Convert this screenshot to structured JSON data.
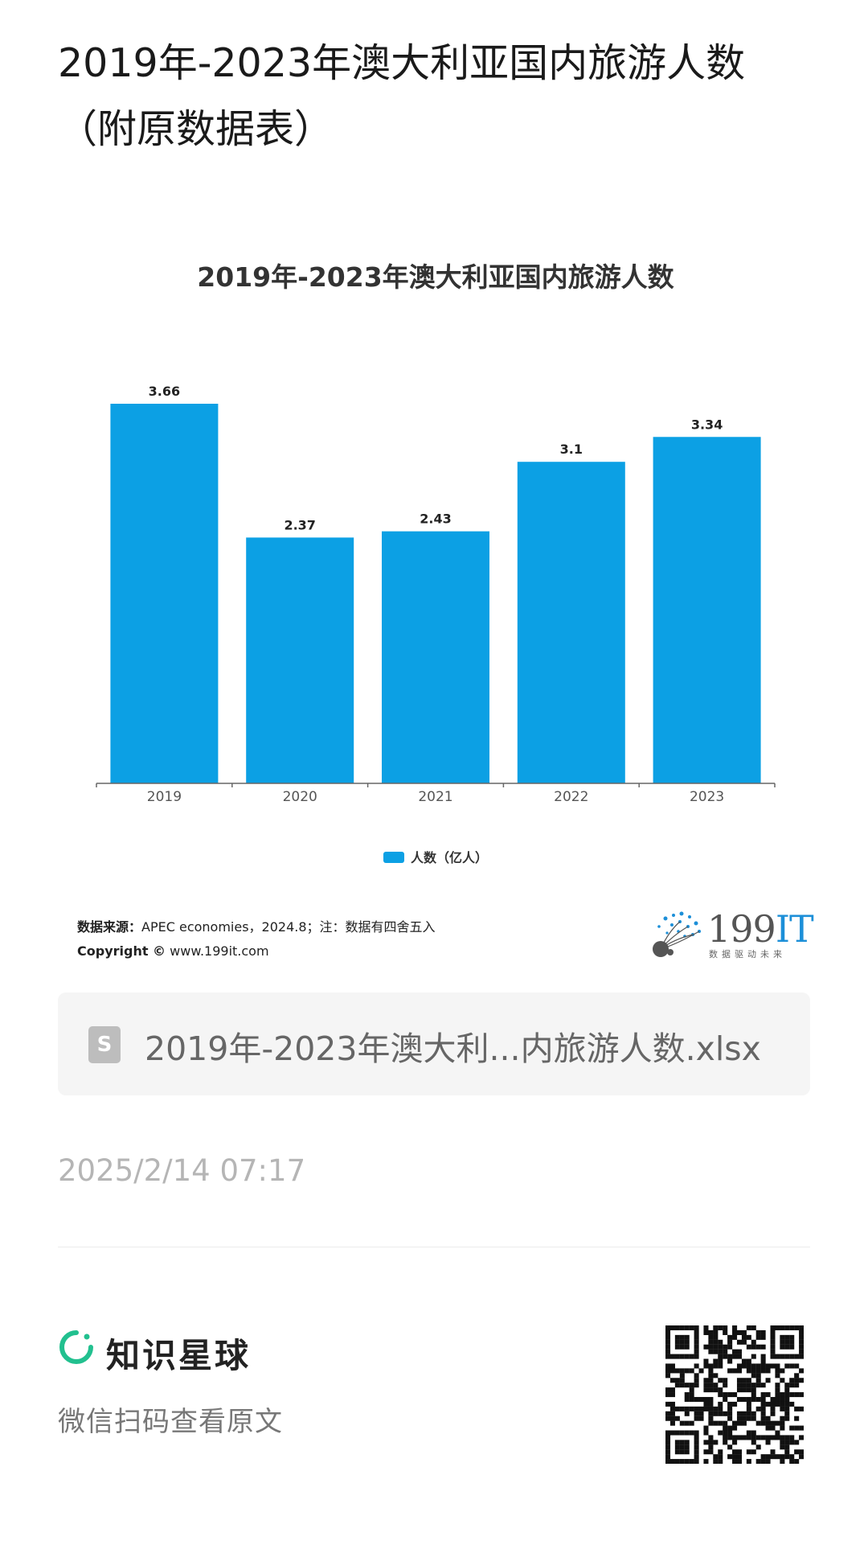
{
  "page": {
    "title": "2019年-2023年澳大利亚国内旅游人数（附原数据表）"
  },
  "chart_data": {
    "type": "bar",
    "title": "2019年-2023年澳大利亚国内旅游人数",
    "categories": [
      "2019",
      "2020",
      "2021",
      "2022",
      "2023"
    ],
    "series": [
      {
        "name": "人数（亿人）",
        "values": [
          3.66,
          2.37,
          2.43,
          3.1,
          3.34
        ]
      }
    ],
    "value_labels": [
      "3.66",
      "2.37",
      "2.43",
      "3.1",
      "3.34"
    ],
    "ylim": [
      0,
      3.66
    ],
    "grid": false,
    "legend_position": "bottom",
    "colors": {
      "bar": "#0ca0e4",
      "axis": "#666666"
    }
  },
  "source": {
    "label": "数据来源：",
    "text": "APEC economies，2024.8；注：数据有四舍五入",
    "copyright_label": "Copyright ©",
    "copyright_text": " www.199it.com"
  },
  "logo": {
    "text_main": "199",
    "text_accent": "IT",
    "tagline": "数据驱动未来"
  },
  "file": {
    "icon": "S",
    "name": "2019年-2023年澳大利...内旅游人数.xlsx"
  },
  "timestamp": "2025/2/14 07:17",
  "footer": {
    "brand_name": "知识星球",
    "subtitle": "微信扫码查看原文",
    "brand_color": "#22c08f"
  }
}
